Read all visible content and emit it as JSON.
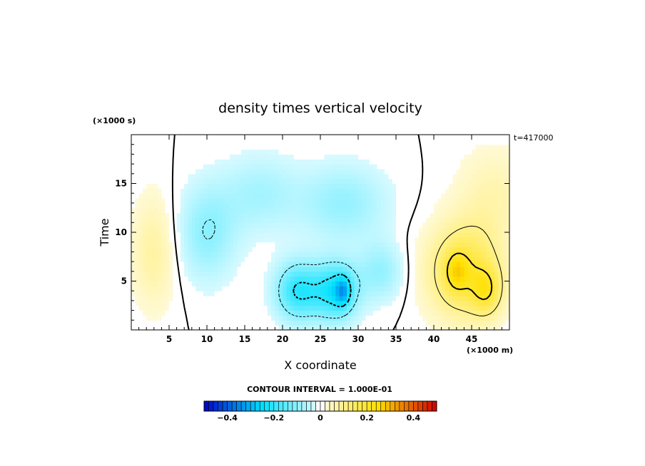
{
  "chart_data": {
    "type": "heatmap",
    "title": "density times vertical velocity",
    "xlabel": "X coordinate",
    "ylabel": "Time",
    "x_unit": "(×1000 m)",
    "y_unit": "(×1000 s)",
    "time_label": "t=417000",
    "xlim": [
      0,
      50
    ],
    "ylim": [
      0,
      20
    ],
    "x_ticks": [
      5,
      10,
      15,
      20,
      25,
      30,
      35,
      40,
      45
    ],
    "y_ticks": [
      5,
      10,
      15
    ],
    "contour_interval_text": "CONTOUR INTERVAL = 1.000E-01",
    "colorbar": {
      "min": -0.5,
      "max": 0.5,
      "tick_values": [
        -0.4,
        -0.2,
        0,
        0.2,
        0.4
      ],
      "tick_labels": [
        "−0.4",
        "−0.2",
        "0",
        "0.2",
        "0.4"
      ]
    },
    "features": [
      {
        "x": 3,
        "y": 8,
        "sx": 3,
        "sy": 6,
        "value": 0.08
      },
      {
        "x": 10,
        "y": 10,
        "sx": 4,
        "sy": 5,
        "value": -0.1
      },
      {
        "x": 17,
        "y": 14,
        "sx": 5,
        "sy": 4,
        "value": -0.07
      },
      {
        "x": 28,
        "y": 13,
        "sx": 6,
        "sy": 4,
        "value": -0.09
      },
      {
        "x": 22,
        "y": 4,
        "sx": 3,
        "sy": 3,
        "value": -0.2
      },
      {
        "x": 27,
        "y": 4,
        "sx": 3,
        "sy": 3,
        "value": -0.22
      },
      {
        "x": 28,
        "y": 4,
        "sx": 1,
        "sy": 1.5,
        "value": -0.14
      },
      {
        "x": 33,
        "y": 6,
        "sx": 3,
        "sy": 3,
        "value": -0.09
      },
      {
        "x": 44,
        "y": 6,
        "sx": 5,
        "sy": 5,
        "value": 0.18
      },
      {
        "x": 43,
        "y": 6,
        "sx": 1.5,
        "sy": 2,
        "value": 0.1
      },
      {
        "x": 47,
        "y": 4,
        "sx": 2,
        "sy": 2.5,
        "value": 0.12
      },
      {
        "x": 48,
        "y": 14,
        "sx": 5,
        "sy": 5,
        "value": 0.06
      }
    ],
    "colors": {
      "negative": "#00e0ff",
      "negative_strong": "#0000c8",
      "positive": "#ffe000",
      "positive_strong": "#d00000"
    }
  }
}
